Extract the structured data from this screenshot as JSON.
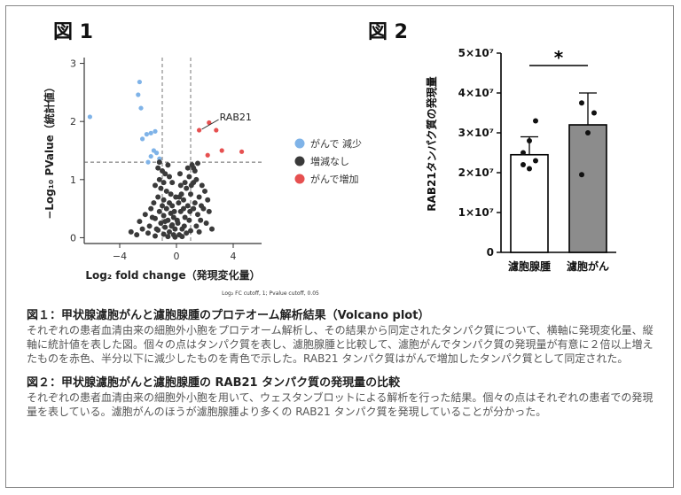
{
  "fig1": {
    "title": "図 1",
    "chart_data": {
      "type": "scatter",
      "xlabel": "Log₂ fold change（発現変化量）",
      "ylabel": "−Log₁₀ PValue（統計値）",
      "xlim": [
        -6.5,
        6.0
      ],
      "ylim": [
        -0.1,
        3.1
      ],
      "x_ticks": [
        -4,
        0,
        4
      ],
      "y_ticks": [
        0,
        1,
        2,
        3
      ],
      "vlines": [
        -1,
        1
      ],
      "hline": 1.3,
      "footnote": "Log₂ FC cutoff, 1; Pvalue cutoff, 0.05",
      "annotation": {
        "label": "RAB21",
        "x": 1.6,
        "y": 1.85
      },
      "legend_position": "right",
      "series": [
        {
          "name": "がんで 減少",
          "color": "#7fb3e8",
          "points": [
            [
              -6.1,
              2.08
            ],
            [
              -2.6,
              2.68
            ],
            [
              -2.7,
              2.46
            ],
            [
              -2.5,
              2.23
            ],
            [
              -2.1,
              1.78
            ],
            [
              -1.8,
              1.8
            ],
            [
              -2.4,
              1.7
            ],
            [
              -1.5,
              1.83
            ],
            [
              -1.6,
              1.5
            ],
            [
              -1.4,
              1.46
            ],
            [
              -1.8,
              1.4
            ],
            [
              -2.0,
              1.3
            ],
            [
              -1.2,
              1.36
            ]
          ]
        },
        {
          "name": "増減なし",
          "color": "#3a3a3a",
          "points": [
            [
              -1.3,
              1.2
            ],
            [
              -1.0,
              1.15
            ],
            [
              -0.8,
              1.1
            ],
            [
              -1.2,
              1.0
            ],
            [
              -0.6,
              1.25
            ],
            [
              -0.9,
              0.95
            ],
            [
              -1.5,
              0.9
            ],
            [
              -1.1,
              0.85
            ],
            [
              -0.7,
              0.8
            ],
            [
              -0.4,
              0.75
            ],
            [
              -1.3,
              0.7
            ],
            [
              -0.9,
              0.65
            ],
            [
              -0.5,
              0.6
            ],
            [
              -1.6,
              0.6
            ],
            [
              -1.0,
              0.55
            ],
            [
              -0.3,
              0.55
            ],
            [
              -1.8,
              0.5
            ],
            [
              -0.7,
              0.5
            ],
            [
              -1.2,
              0.45
            ],
            [
              -0.4,
              0.42
            ],
            [
              -2.2,
              0.4
            ],
            [
              -0.9,
              0.38
            ],
            [
              -0.2,
              0.35
            ],
            [
              -1.5,
              0.33
            ],
            [
              -0.6,
              0.3
            ],
            [
              -2.6,
              0.28
            ],
            [
              -1.1,
              0.25
            ],
            [
              -0.3,
              0.22
            ],
            [
              -1.9,
              0.2
            ],
            [
              -0.8,
              0.18
            ],
            [
              -0.1,
              0.15
            ],
            [
              -1.3,
              0.13
            ],
            [
              -0.5,
              0.1
            ],
            [
              -2.0,
              0.08
            ],
            [
              -0.9,
              0.06
            ],
            [
              -0.2,
              0.05
            ],
            [
              -1.5,
              0.03
            ],
            [
              -0.6,
              0.02
            ],
            [
              -0.1,
              0.01
            ],
            [
              -3.2,
              0.1
            ],
            [
              -2.8,
              0.05
            ],
            [
              -1.2,
              1.3
            ],
            [
              -0.5,
              1.05
            ],
            [
              0.2,
              0.05
            ],
            [
              0.4,
              0.15
            ],
            [
              0.1,
              0.25
            ],
            [
              0.6,
              0.35
            ],
            [
              0.3,
              0.45
            ],
            [
              0.8,
              0.55
            ],
            [
              0.5,
              0.65
            ],
            [
              1.0,
              0.75
            ],
            [
              0.7,
              0.85
            ],
            [
              1.2,
              0.95
            ],
            [
              0.9,
              1.05
            ],
            [
              1.3,
              1.15
            ],
            [
              1.1,
              1.25
            ],
            [
              0.4,
              0.02
            ],
            [
              0.7,
              0.08
            ],
            [
              1.0,
              0.12
            ],
            [
              1.4,
              0.2
            ],
            [
              1.7,
              0.3
            ],
            [
              1.5,
              0.4
            ],
            [
              1.9,
              0.5
            ],
            [
              1.3,
              0.6
            ],
            [
              1.6,
              0.7
            ],
            [
              2.0,
              0.8
            ],
            [
              1.8,
              0.9
            ],
            [
              1.4,
              1.0
            ],
            [
              0.6,
              0.95
            ],
            [
              0.2,
              0.7
            ],
            [
              0.5,
              0.5
            ],
            [
              0.9,
              0.3
            ],
            [
              1.2,
              0.5
            ],
            [
              2.3,
              0.45
            ],
            [
              2.1,
              0.25
            ],
            [
              1.6,
              0.1
            ],
            [
              0.3,
              0.9
            ],
            [
              0.8,
              1.2
            ],
            [
              1.5,
              1.28
            ],
            [
              1.2,
              1.2
            ],
            [
              2.5,
              0.15
            ],
            [
              0.15,
              0.6
            ],
            [
              0.35,
              0.75
            ],
            [
              -0.15,
              0.45
            ],
            [
              -0.05,
              0.7
            ],
            [
              0.05,
              0.3
            ],
            [
              -0.35,
              0.2
            ],
            [
              0.55,
              0.2
            ],
            [
              -0.8,
              0.28
            ],
            [
              -1.4,
              0.15
            ],
            [
              0.95,
              0.45
            ],
            [
              1.75,
              0.55
            ],
            [
              -1.7,
              0.35
            ],
            [
              2.2,
              0.65
            ],
            [
              -2.4,
              0.15
            ],
            [
              1.05,
              0.9
            ],
            [
              0.25,
              1.1
            ],
            [
              -0.3,
              0.95
            ]
          ]
        },
        {
          "name": "がんで増加",
          "color": "#e65050",
          "points": [
            [
              1.6,
              1.85
            ],
            [
              2.3,
              1.98
            ],
            [
              2.8,
              1.85
            ],
            [
              3.2,
              1.5
            ],
            [
              2.2,
              1.42
            ],
            [
              4.6,
              1.48
            ]
          ]
        }
      ]
    }
  },
  "fig2": {
    "title": "図 2",
    "chart_data": {
      "type": "bar",
      "categories": [
        "濾胞腺腫",
        "濾胞がん"
      ],
      "values": [
        24500000,
        32000000
      ],
      "errors": [
        4500000,
        8000000
      ],
      "bar_colors": [
        "#ffffff",
        "#8c8c8c"
      ],
      "ylabel": "RAB21タンパク質の発現量",
      "ylim": [
        0,
        50000000
      ],
      "y_ticks": [
        0,
        10000000,
        20000000,
        30000000,
        40000000,
        50000000
      ],
      "y_tick_labels": [
        "0",
        "1×10⁷",
        "2×10⁷",
        "3×10⁷",
        "4×10⁷",
        "5×10⁷"
      ],
      "points": [
        [
          22000000,
          21000000,
          23000000,
          25000000,
          28000000,
          33000000
        ],
        [
          19500000,
          30000000,
          35000000,
          37500000
        ]
      ],
      "significance": "*"
    }
  },
  "captions": [
    {
      "title": "図１：甲状腺濾胞がんと濾胞腺腫のプロテオーム解析結果（Volcano plot）",
      "body": "それぞれの患者血清由来の細胞外小胞をプロテオーム解析し、その結果から同定されたタンパク質について、横軸に発現変化量、縦軸に統計値を表した図。個々の点はタンパク質を表し、濾胞腺腫と比較して、濾胞がんでタンパク質の発現量が有意に２倍以上増えたものを赤色、半分以下に減少したものを青色で示した。RAB21 タンパク質はがんで増加したタンパク質として同定された。"
    },
    {
      "title": "図２：甲状腺濾胞がんと濾胞腺腫の RAB21 タンパク質の発現量の比較",
      "body": "それぞれの患者血清由来の細胞外小胞を用いて、ウェスタンブロットによる解析を行った結果。個々の点はそれぞれの患者での発現量を表している。濾胞がんのほうが濾胞腺腫より多くの RAB21 タンパク質を発現していることが分かった。"
    }
  ]
}
